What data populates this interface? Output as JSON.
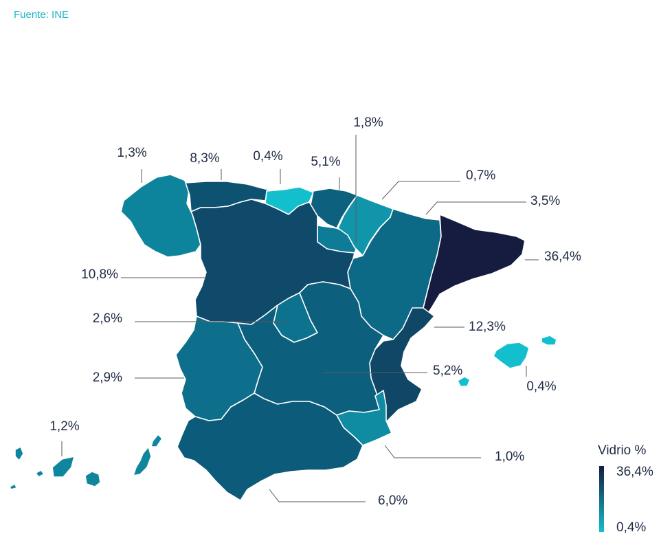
{
  "source": "Fuente: INE",
  "colors": {
    "source": "#19b6c8",
    "text": "#1f2a44",
    "scale_low": "#13bfcc",
    "scale_high": "#151c3f"
  },
  "legend": {
    "title": "Vidrio %",
    "max": "36,4%",
    "min": "0,4%",
    "max_value": 36.4,
    "min_value": 0.4
  },
  "regions": [
    {
      "name": "Galicia",
      "value": 1.3,
      "label": "1,3%"
    },
    {
      "name": "Asturias",
      "value": 8.3,
      "label": "8,3%"
    },
    {
      "name": "Cantabria",
      "value": 0.4,
      "label": "0,4%"
    },
    {
      "name": "País Vasco",
      "value": 5.1,
      "label": "5,1%"
    },
    {
      "name": "La Rioja",
      "value": 1.8,
      "label": "1,8%"
    },
    {
      "name": "Navarra",
      "value": 0.7,
      "label": "0,7%"
    },
    {
      "name": "Aragón",
      "value": 3.5,
      "label": "3,5%"
    },
    {
      "name": "Cataluña",
      "value": 36.4,
      "label": "36,4%"
    },
    {
      "name": "Castilla y León",
      "value": 10.8,
      "label": "10,8%"
    },
    {
      "name": "Madrid",
      "value": 2.6,
      "label": "2,6%"
    },
    {
      "name": "Comunidad Valenciana",
      "value": 12.3,
      "label": "12,3%"
    },
    {
      "name": "Castilla-La Mancha",
      "value": 5.2,
      "label": "5,2%"
    },
    {
      "name": "Islas Baleares",
      "value": 0.4,
      "label": "0,4%"
    },
    {
      "name": "Extremadura",
      "value": 2.9,
      "label": "2,9%"
    },
    {
      "name": "Canarias",
      "value": 1.2,
      "label": "1,2%"
    },
    {
      "name": "Murcia",
      "value": 1.0,
      "label": "1,0%"
    },
    {
      "name": "Andalucía",
      "value": 6.0,
      "label": "6,0%"
    }
  ]
}
